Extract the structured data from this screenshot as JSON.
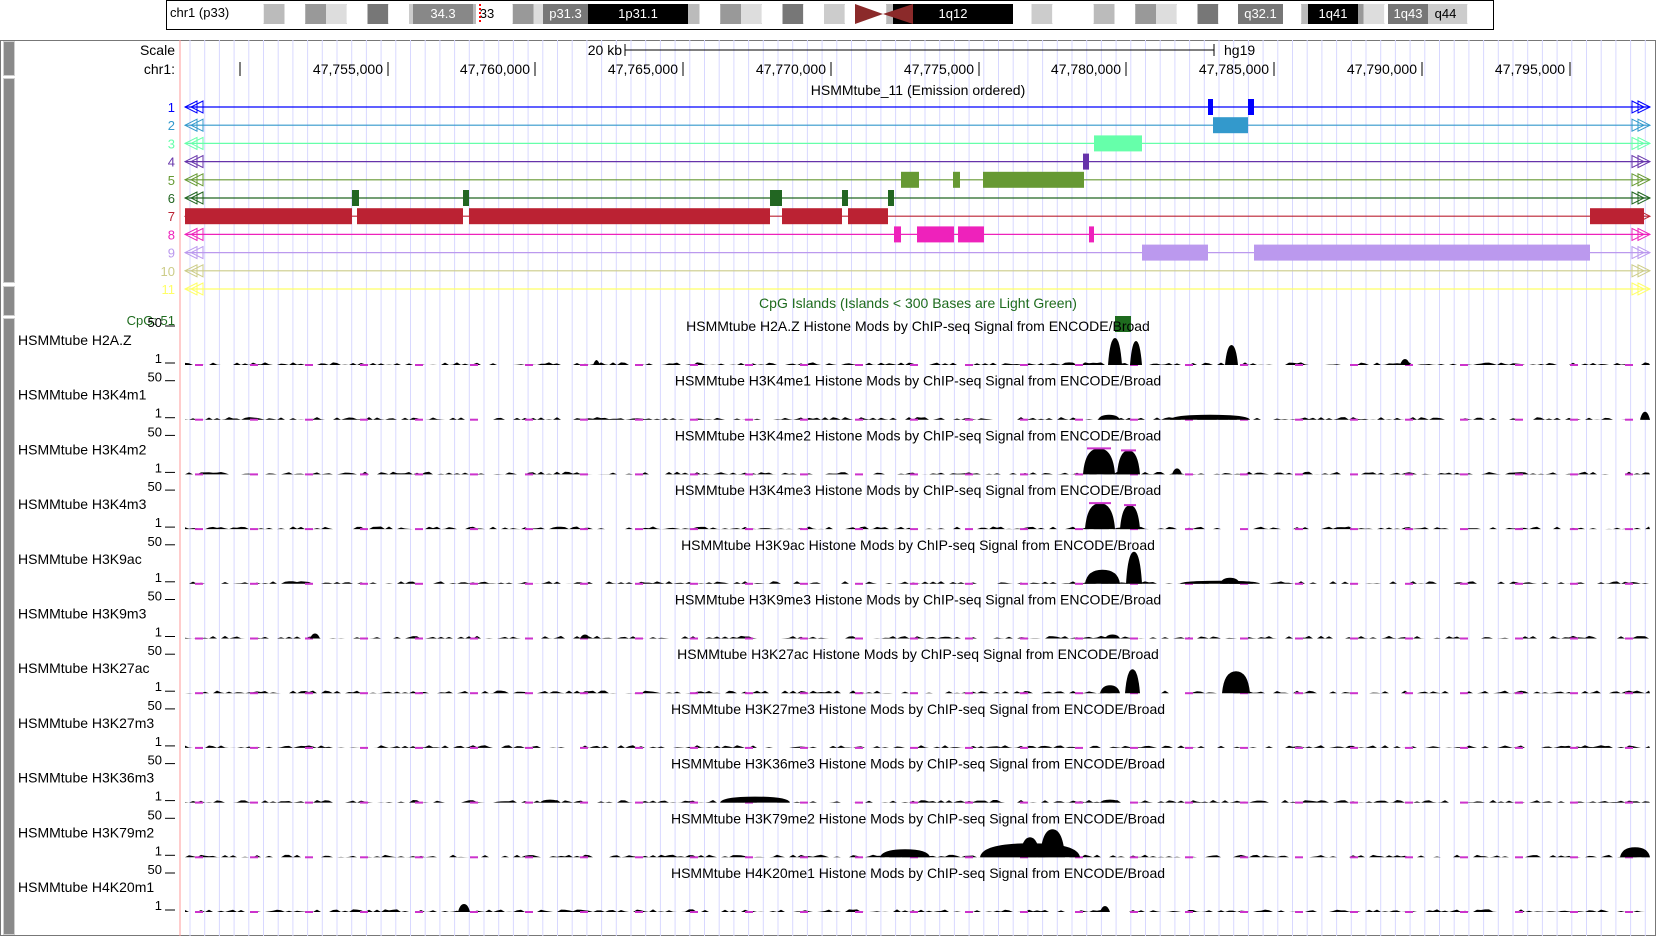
{
  "ideogram": {
    "label": "chr1 (p33)",
    "bands": [
      {
        "name": "34.3",
        "c": "#888"
      },
      {
        "name": "33",
        "c": "#fff"
      },
      {
        "name": "p31.3",
        "c": "#777"
      },
      {
        "name": "1p31.1",
        "c": "#000"
      },
      {
        "name": "1q12",
        "c": "#000"
      },
      {
        "name": "q32.1",
        "c": "#777"
      },
      {
        "name": "1q41",
        "c": "#000"
      },
      {
        "name": "1q43",
        "c": "#777"
      },
      {
        "name": "q44",
        "c": "#ccc"
      }
    ]
  },
  "ruler": {
    "scale_label": "Scale",
    "scale_value": "20 kb",
    "assembly": "hg19",
    "chrom_label": "chr1:",
    "ticks": [
      "47,755,000",
      "47,760,000",
      "47,765,000",
      "47,770,000",
      "47,775,000",
      "47,780,000",
      "47,785,000",
      "47,790,000",
      "47,795,000"
    ]
  },
  "hmm_track": {
    "title": "HSMMtube_11 (Emission ordered)",
    "state_colors": [
      "#0000ff",
      "#3399cc",
      "#66ffaa",
      "#6633aa",
      "#669933",
      "#226622",
      "#bb2233",
      "#ee22bb",
      "#bb99ee",
      "#cccc88",
      "#ffff66"
    ],
    "states": [
      "1",
      "2",
      "3",
      "4",
      "5",
      "6",
      "7",
      "8",
      "9",
      "10",
      "11"
    ]
  },
  "cpg": {
    "title": "CpG Islands (Islands < 300 Bases are Light Green)",
    "label": "CpG: 51",
    "color": "#1e6b1e"
  },
  "signal_tracks": [
    {
      "name": "HSMMtube H2A.Z",
      "title": "HSMMtube H2A.Z Histone Mods by ChIP-seq Signal from ENCODE/Broad"
    },
    {
      "name": "HSMMtube H3K4m1",
      "title": "HSMMtube H3K4me1 Histone Mods by ChIP-seq Signal from ENCODE/Broad"
    },
    {
      "name": "HSMMtube H3K4m2",
      "title": "HSMMtube H3K4me2 Histone Mods by ChIP-seq Signal from ENCODE/Broad"
    },
    {
      "name": "HSMMtube H3K4m3",
      "title": "HSMMtube H3K4me3 Histone Mods by ChIP-seq Signal from ENCODE/Broad"
    },
    {
      "name": "HSMMtube H3K9ac",
      "title": "HSMMtube H3K9ac Histone Mods by ChIP-seq Signal from ENCODE/Broad"
    },
    {
      "name": "HSMMtube H3K9m3",
      "title": "HSMMtube H3K9me3 Histone Mods by ChIP-seq Signal from ENCODE/Broad"
    },
    {
      "name": "HSMMtube H3K27ac",
      "title": "HSMMtube H3K27ac Histone Mods by ChIP-seq Signal from ENCODE/Broad"
    },
    {
      "name": "HSMMtube H3K27m3",
      "title": "HSMMtube H3K27me3 Histone Mods by ChIP-seq Signal from ENCODE/Broad"
    },
    {
      "name": "HSMMtube H3K36m3",
      "title": "HSMMtube H3K36me3 Histone Mods by ChIP-seq Signal from ENCODE/Broad"
    },
    {
      "name": "HSMMtube H3K79m2",
      "title": "HSMMtube H3K79me2 Histone Mods by ChIP-seq Signal from ENCODE/Broad"
    },
    {
      "name": "HSMMtube H4K20m1",
      "title": "HSMMtube H4K20me1 Histone Mods by ChIP-seq Signal from ENCODE/Broad"
    }
  ],
  "signal_axis": {
    "max": "50",
    "min": "1"
  },
  "colors": {
    "overflow": "#cc33cc",
    "signal": "#000000",
    "guide": "#d8d8ff",
    "cpg_text": "#1e6b1e"
  }
}
